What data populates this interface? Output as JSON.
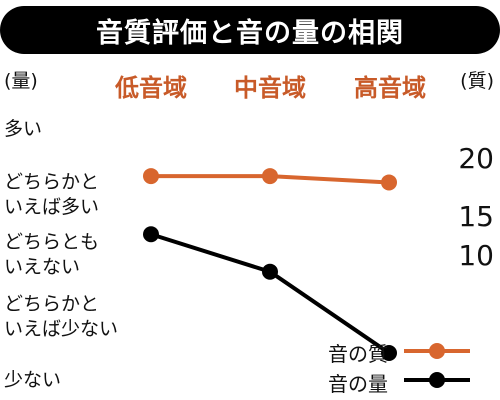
{
  "chart_data": {
    "type": "line",
    "title": "音質評価と音の量の相関",
    "left_axis_label": "(量)",
    "right_axis_label": "(質)",
    "categories": [
      "低音域",
      "中音域",
      "高音域"
    ],
    "left_axis_categories": [
      "多い",
      "どちらかと\nいえば多い",
      "どちらとも\nいえない",
      "どちらかと\nいえば少ない",
      "少ない"
    ],
    "right_axis_ticks": [
      "20",
      "15",
      "10"
    ],
    "series": [
      {
        "name": "音の質",
        "color": "#d8662e",
        "axis": "right",
        "values": [
          18.2,
          18.2,
          17.6
        ]
      },
      {
        "name": "音の量",
        "color": "#000000",
        "axis": "left",
        "values": [
          1.7,
          2.3,
          3.6
        ]
      }
    ],
    "right_ylim": [
      10,
      20
    ],
    "left_ylim": [
      0,
      4
    ],
    "legend_position": "bottom-right"
  }
}
